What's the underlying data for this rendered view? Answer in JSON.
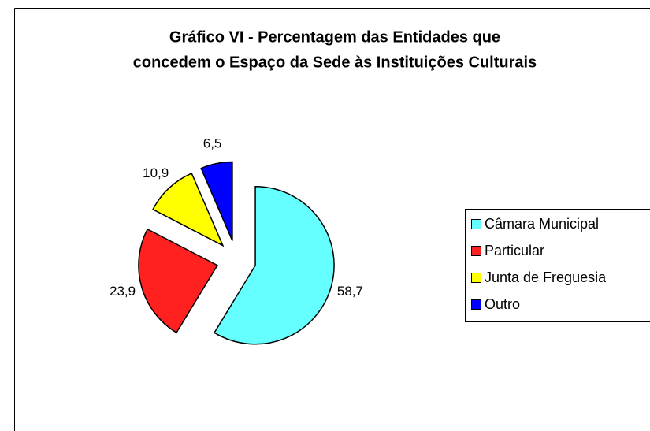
{
  "chart_data": {
    "type": "pie",
    "title": [
      "Gráfico VI - Percentagem das Entidades que",
      "concedem o Espaço da Sede às Instituições Culturais"
    ],
    "categories": [
      "Câmara Municipal",
      "Particular",
      "Junta de Freguesia",
      "Outro"
    ],
    "values": [
      58.7,
      23.9,
      10.9,
      6.5
    ],
    "value_labels": [
      "58,7",
      "23,9",
      "10,9",
      "6,5"
    ],
    "colors": [
      "#66ffff",
      "#ff2020",
      "#ffff00",
      "#0000ff"
    ],
    "legend": "right"
  }
}
